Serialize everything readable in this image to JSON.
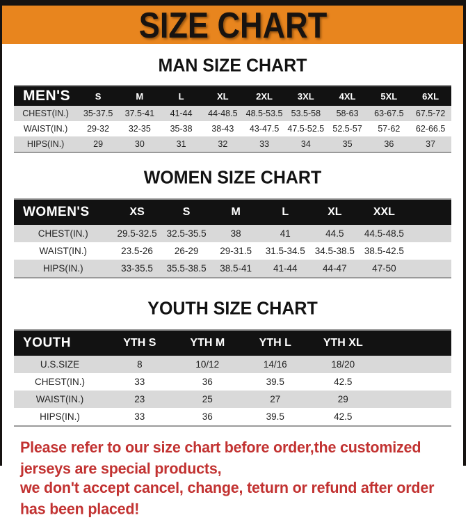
{
  "banner": {
    "title": "SIZE CHART"
  },
  "sections": [
    {
      "title": "MAN SIZE CHART",
      "table": {
        "header": [
          "MEN'S",
          "S",
          "M",
          "L",
          "XL",
          "2XL",
          "3XL",
          "4XL",
          "5XL",
          "6XL"
        ],
        "rows": [
          [
            "CHEST(IN.)",
            "35-37.5",
            "37.5-41",
            "41-44",
            "44-48.5",
            "48.5-53.5",
            "53.5-58",
            "58-63",
            "63-67.5",
            "67.5-72"
          ],
          [
            "WAIST(IN.)",
            "29-32",
            "32-35",
            "35-38",
            "38-43",
            "43-47.5",
            "47.5-52.5",
            "52.5-57",
            "57-62",
            "62-66.5"
          ],
          [
            "HIPS(IN.)",
            "29",
            "30",
            "31",
            "32",
            "33",
            "34",
            "35",
            "36",
            "37"
          ]
        ]
      }
    },
    {
      "title": "WOMEN SIZE CHART",
      "table": {
        "header": [
          "WOMEN'S",
          "XS",
          "S",
          "M",
          "L",
          "XL",
          "XXL"
        ],
        "rows": [
          [
            "CHEST(IN.)",
            "29.5-32.5",
            "32.5-35.5",
            "38",
            "41",
            "44.5",
            "44.5-48.5"
          ],
          [
            "WAIST(IN.)",
            "23.5-26",
            "26-29",
            "29-31.5",
            "31.5-34.5",
            "34.5-38.5",
            "38.5-42.5"
          ],
          [
            "HIPS(IN.)",
            "33-35.5",
            "35.5-38.5",
            "38.5-41",
            "41-44",
            "44-47",
            "47-50"
          ]
        ]
      }
    },
    {
      "title": "YOUTH SIZE CHART",
      "table": {
        "header": [
          "YOUTH",
          "YTH S",
          "YTH M",
          "YTH L",
          "YTH XL"
        ],
        "rows": [
          [
            "U.S.SIZE",
            "8",
            "10/12",
            "14/16",
            "18/20"
          ],
          [
            "CHEST(IN.)",
            "33",
            "36",
            "39.5",
            "42.5"
          ],
          [
            "WAIST(IN.)",
            "23",
            "25",
            "27",
            "29"
          ],
          [
            "HIPS(IN.)",
            "33",
            "36",
            "39.5",
            "42.5"
          ]
        ]
      }
    }
  ],
  "footer": {
    "line1": "Please refer to our size chart before order,the customized jerseys are special products,",
    "line2": "we don't accept cancel, change, teturn or refund after order has been placed!"
  },
  "colors": {
    "banner_orange": "#E8851E",
    "frame_black": "#161311",
    "header_black": "#121212",
    "row_gray": "#D9D9D9",
    "footer_red": "#C23231"
  }
}
